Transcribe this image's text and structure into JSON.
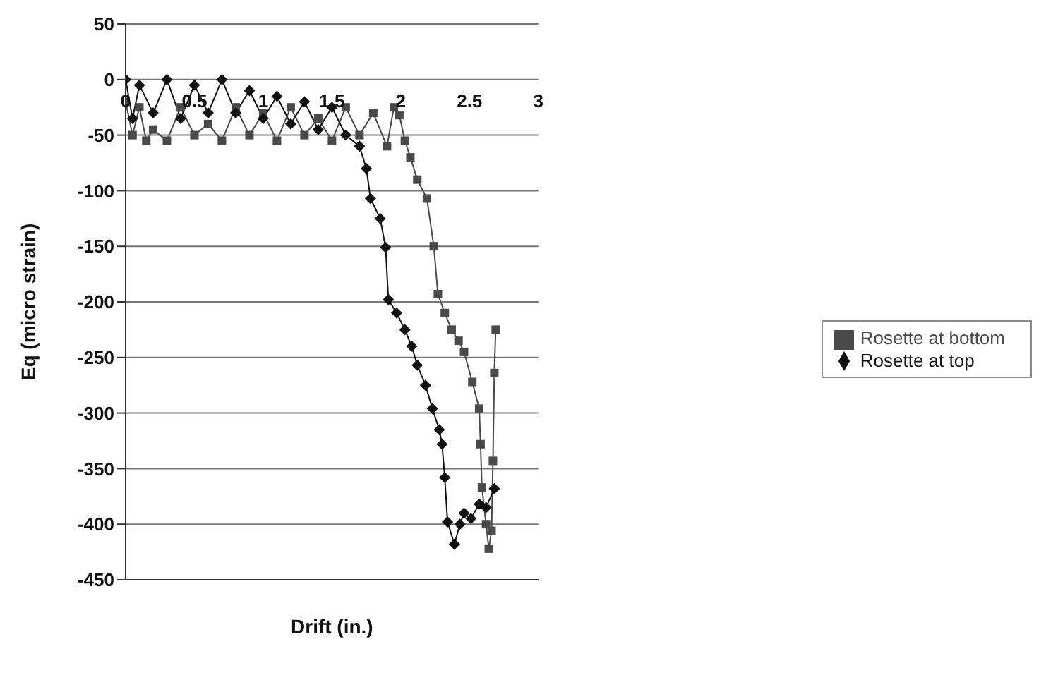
{
  "chart_data": {
    "type": "line",
    "xlabel": "Drift (in.)",
    "ylabel": "Eq (micro strain)",
    "xlim": [
      0,
      3
    ],
    "xticks": [
      0,
      0.5,
      1,
      1.5,
      2,
      2.5,
      3
    ],
    "ylim": [
      -450,
      50
    ],
    "yticks": [
      50,
      0,
      -50,
      -100,
      -150,
      -200,
      -250,
      -300,
      -350,
      -400,
      -450
    ],
    "grid": "y",
    "legend": "right",
    "series": [
      {
        "name": "Rosette at bottom",
        "color": "#4a4a4a",
        "marker": "square",
        "x": [
          0,
          0.05,
          0.1,
          0.15,
          0.2,
          0.3,
          0.4,
          0.5,
          0.6,
          0.7,
          0.8,
          0.9,
          1.0,
          1.1,
          1.2,
          1.3,
          1.4,
          1.5,
          1.6,
          1.7,
          1.8,
          1.9,
          1.95,
          1.99,
          2.03,
          2.07,
          2.12,
          2.19,
          2.24,
          2.27,
          2.32,
          2.37,
          2.42,
          2.46,
          2.52,
          2.57,
          2.58,
          2.59,
          2.62,
          2.64,
          2.66,
          2.67,
          2.68,
          2.69
        ],
        "values": [
          -20,
          -50,
          -25,
          -55,
          -45,
          -55,
          -25,
          -50,
          -40,
          -55,
          -25,
          -50,
          -30,
          -55,
          -25,
          -50,
          -35,
          -55,
          -25,
          -50,
          -30,
          -60,
          -25,
          -32,
          -55,
          -70,
          -90,
          -107,
          -150,
          -193,
          -210,
          -225,
          -235,
          -245,
          -272,
          -296,
          -328,
          -367,
          -400,
          -422,
          -406,
          -343,
          -264,
          -225
        ]
      },
      {
        "name": "Rosette at top",
        "color": "#111111",
        "marker": "diamond",
        "x": [
          0,
          0.05,
          0.1,
          0.2,
          0.3,
          0.4,
          0.5,
          0.6,
          0.7,
          0.8,
          0.9,
          1.0,
          1.1,
          1.2,
          1.3,
          1.4,
          1.5,
          1.6,
          1.7,
          1.75,
          1.78,
          1.85,
          1.89,
          1.91,
          1.97,
          2.03,
          2.08,
          2.12,
          2.18,
          2.23,
          2.28,
          2.3,
          2.32,
          2.34,
          2.39,
          2.43,
          2.46,
          2.51,
          2.57,
          2.62,
          2.68
        ],
        "values": [
          0,
          -35,
          -5,
          -30,
          0,
          -35,
          -5,
          -30,
          0,
          -30,
          -10,
          -35,
          -15,
          -40,
          -20,
          -45,
          -25,
          -50,
          -60,
          -80,
          -107,
          -125,
          -151,
          -198,
          -210,
          -225,
          -240,
          -257,
          -275,
          -296,
          -315,
          -328,
          -358,
          -398,
          -418,
          -400,
          -390,
          -395,
          -382,
          -385,
          -368
        ]
      }
    ]
  }
}
